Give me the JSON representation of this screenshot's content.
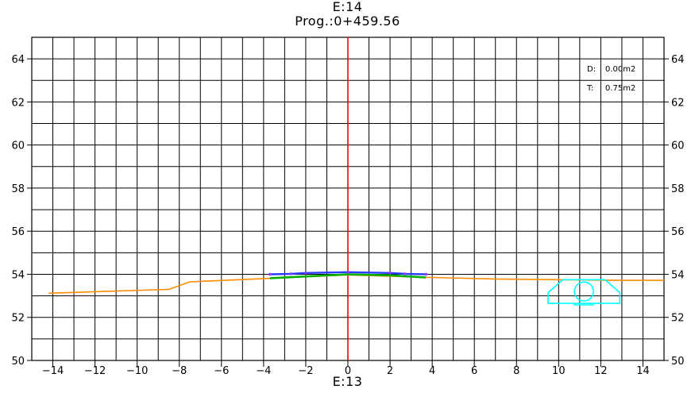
{
  "header": {
    "title": "E:14",
    "subtitle": "Prog.:0+459.56"
  },
  "footer": {
    "label": "E:13"
  },
  "areas": {
    "cut_label": "D:",
    "cut_value": "0.00m2",
    "fill_label": "T:",
    "fill_value": "0.75m2"
  },
  "colors": {
    "grid": "#000000",
    "centerline": "#ff0000",
    "terrain": "#ff8c00",
    "subgrade": "#00b000",
    "pavement": "#2a3cff",
    "culvert": "#00ffff"
  },
  "chart_data": {
    "type": "line",
    "title": "E:14",
    "subtitle": "Prog.:0+459.56",
    "xlabel": "E:13",
    "ylabel": "",
    "xlim": [
      -15,
      15
    ],
    "ylim": [
      50,
      65
    ],
    "grid": true,
    "x_ticks": [
      -14,
      -12,
      -10,
      -8,
      -6,
      -4,
      -2,
      0,
      2,
      4,
      6,
      8,
      10,
      12,
      14
    ],
    "y_ticks": [
      50,
      52,
      54,
      56,
      58,
      60,
      62,
      64
    ],
    "series": [
      {
        "role": "terrain",
        "points": [
          [
            -14.2,
            53.12
          ],
          [
            -8.5,
            53.3
          ],
          [
            -7.5,
            53.65
          ],
          [
            -4,
            53.8
          ],
          [
            0,
            53.97
          ],
          [
            4,
            53.85
          ],
          [
            7,
            53.78
          ],
          [
            10,
            53.75
          ],
          [
            13,
            53.72
          ],
          [
            15,
            53.72
          ]
        ]
      },
      {
        "role": "subgrade",
        "points": [
          [
            -3.7,
            53.82
          ],
          [
            -2,
            53.9
          ],
          [
            0,
            54.0
          ],
          [
            2,
            53.95
          ],
          [
            3.7,
            53.85
          ]
        ]
      },
      {
        "role": "pavement",
        "points": [
          [
            -3.7,
            54.0
          ],
          [
            -2.7,
            54.02
          ],
          [
            -2,
            54.06
          ],
          [
            0,
            54.1
          ],
          [
            2,
            54.06
          ],
          [
            2.7,
            54.02
          ],
          [
            3.7,
            54.0
          ]
        ]
      }
    ],
    "centerline_x": 0,
    "culvert": {
      "outline": [
        [
          9.5,
          53.15
        ],
        [
          10.2,
          53.75
        ],
        [
          12.2,
          53.75
        ],
        [
          12.9,
          53.15
        ],
        [
          12.9,
          52.65
        ],
        [
          9.5,
          52.65
        ],
        [
          9.5,
          53.15
        ]
      ],
      "pipe_center": [
        11.2,
        53.2
      ],
      "pipe_radius": 0.45,
      "pipe_base": [
        [
          10.7,
          52.58
        ],
        [
          11.7,
          52.58
        ]
      ]
    }
  }
}
